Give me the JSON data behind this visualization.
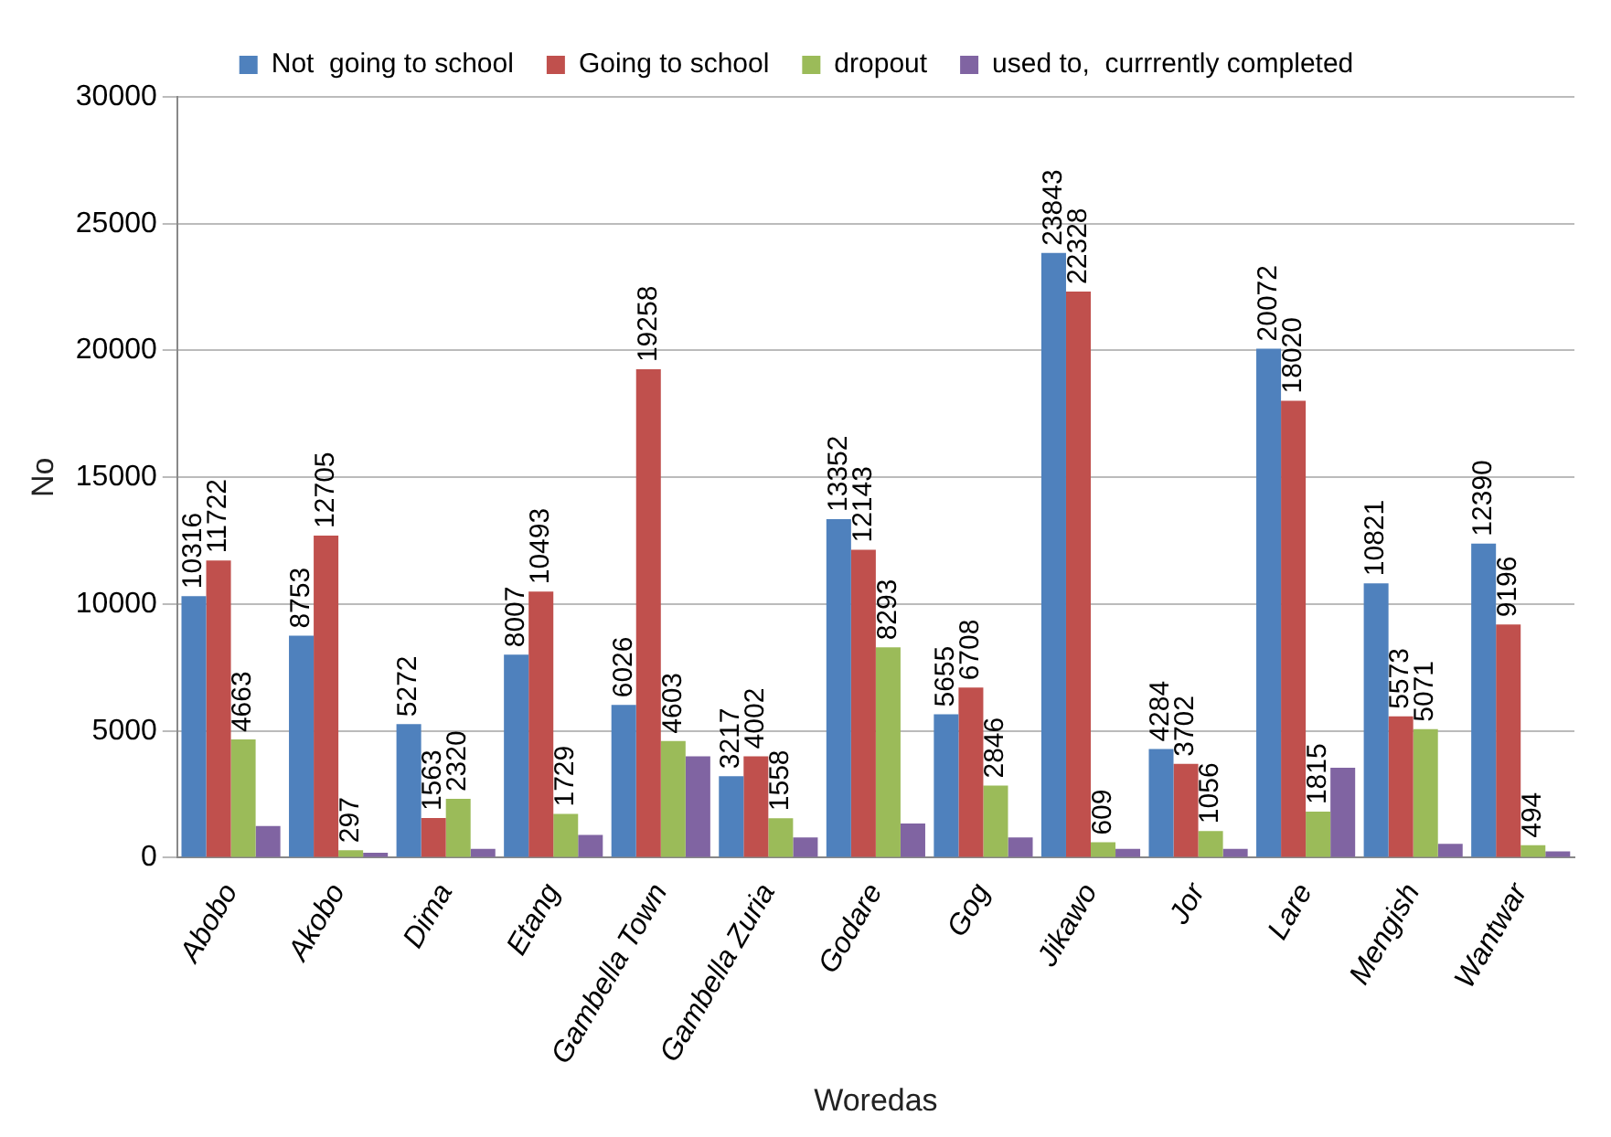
{
  "chart_data": {
    "type": "bar",
    "xlabel": "Woredas",
    "ylabel": "No",
    "categories": [
      "Abobo",
      "Akobo",
      "Dima",
      "Etang",
      "Gambella Town",
      "Gambella Zuria",
      "Godare",
      "Gog",
      "Jikawo",
      "Jor",
      "Lare",
      "Mengish",
      "Wantwar"
    ],
    "series": [
      {
        "name": "Not  going to school",
        "color": "#4f81bd",
        "values": [
          10316,
          8753,
          5272,
          8007,
          6026,
          3217,
          13352,
          5655,
          23843,
          4284,
          20072,
          10821,
          12390
        ],
        "value_labels": [
          "10316",
          "8753",
          "5272",
          "8007",
          "6026",
          "3217",
          "13352",
          "5655",
          "23843",
          "4284",
          "20072",
          "10821",
          "12390"
        ]
      },
      {
        "name": "Going to school",
        "color": "#c0504d",
        "values": [
          11722,
          12705,
          1563,
          10493,
          19258,
          4002,
          12143,
          6708,
          22328,
          3702,
          18020,
          5573,
          9196
        ],
        "value_labels": [
          "11722",
          "12705",
          "1563",
          "10493",
          "19258",
          "4002",
          "12143",
          "6708",
          "22328",
          "3702",
          "18020",
          "5573",
          "9196"
        ]
      },
      {
        "name": "dropout",
        "color": "#9bbb59",
        "values": [
          4663,
          297,
          2320,
          1729,
          4603,
          1558,
          8293,
          2846,
          609,
          1056,
          1815,
          5071,
          494
        ],
        "value_labels": [
          "4663",
          "297",
          "2320",
          "1729",
          "4603",
          "1558",
          "8293",
          "2846",
          "609",
          "1056",
          "1815",
          "5071",
          "494"
        ]
      },
      {
        "name": "used to,  currrently completed",
        "color": "#8064a2",
        "values": [
          1250,
          200,
          350,
          900,
          4000,
          800,
          1350,
          800,
          350,
          350,
          3550,
          550,
          250
        ]
      }
    ],
    "ylim": [
      0,
      30000
    ],
    "yticks": [
      0,
      5000,
      10000,
      15000,
      20000,
      25000,
      30000
    ],
    "grid": "y",
    "legend": "top"
  }
}
